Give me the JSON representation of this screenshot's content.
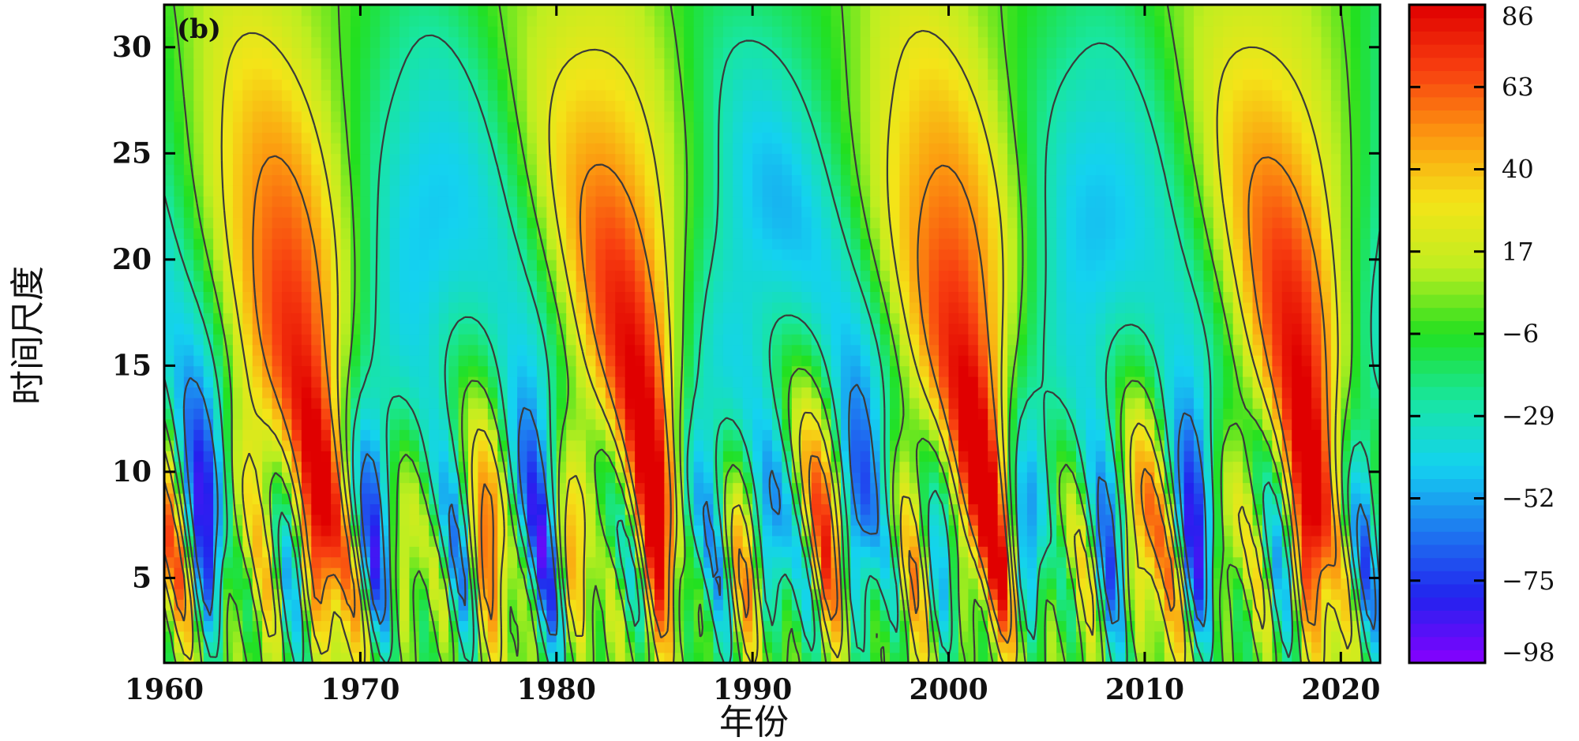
{
  "chart_data": {
    "type": "heatmap",
    "panel_label": "(b)",
    "xlabel": "年份",
    "ylabel": "时间尺度",
    "xlim": [
      1960,
      2022
    ],
    "ylim": [
      1,
      32
    ],
    "x_ticks": [
      1960,
      1970,
      1980,
      1990,
      2000,
      2010,
      2020
    ],
    "y_ticks": [
      5,
      10,
      15,
      20,
      25,
      30
    ],
    "colorbar": {
      "min": -98,
      "max": 86,
      "ticks": [
        86,
        63,
        40,
        17,
        -6,
        -29,
        -52,
        -75,
        -98
      ],
      "tick_labels": [
        "86",
        "63",
        "40",
        "17",
        "−6",
        "−29",
        "−52",
        "−75",
        "−98"
      ],
      "colors": [
        "#8800ff",
        "#2222ee",
        "#1e78f0",
        "#14d2f0",
        "#18e6a0",
        "#22e020",
        "#bfee20",
        "#f4e418",
        "#fc9a10",
        "#f84010",
        "#e00000"
      ]
    },
    "pattern": {
      "description": "wavelet coefficient field (approximate)",
      "long_waves": [
        {
          "scale_center": 20,
          "period_years": 17,
          "phase_year": 1966,
          "amplitude": 55
        },
        {
          "scale_center": 12,
          "period_years": 8.5,
          "phase_year": 1967,
          "amplitude": 40
        },
        {
          "scale_center": 7.5,
          "period_years": 4.2,
          "phase_year": 1960,
          "amplitude": 55
        },
        {
          "scale_center": 4,
          "period_years": 2.2,
          "phase_year": 1961,
          "amplitude": 30
        }
      ]
    }
  }
}
